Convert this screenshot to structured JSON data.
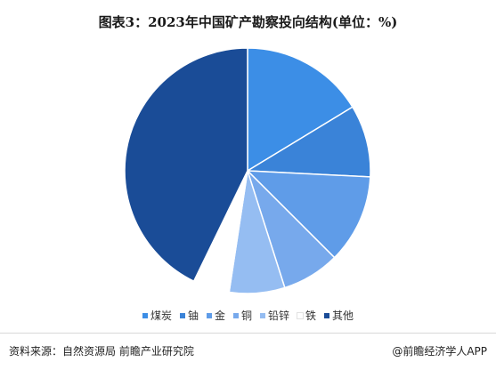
{
  "header": {
    "title": "图表3：2023年中国矿产勘察投向结构(单位：%)"
  },
  "chart_data": {
    "type": "pie",
    "title": "图表3：2023年中国矿产勘察投向结构(单位：%)",
    "categories": [
      "煤炭",
      "铀",
      "金",
      "铜",
      "铅锌",
      "铁",
      "其他"
    ],
    "values": [
      16.3,
      9.5,
      11.7,
      7.6,
      7.3,
      4.8,
      42.8
    ],
    "colors": [
      "#3c8ee6",
      "#3a83d8",
      "#5f9ce8",
      "#77a9ec",
      "#95bdf2",
      "#ffffff",
      "#1a4c97"
    ],
    "start_angle_deg": 0,
    "direction": "clockwise",
    "legend_position": "bottom"
  },
  "legend": {
    "items": [
      {
        "label": "煤炭",
        "color": "#3c8ee6"
      },
      {
        "label": "铀",
        "color": "#3a83d8"
      },
      {
        "label": "金",
        "color": "#5f9ce8"
      },
      {
        "label": "铜",
        "color": "#77a9ec"
      },
      {
        "label": "铅锌",
        "color": "#95bdf2"
      },
      {
        "label": "铁",
        "color": "#ffffff"
      },
      {
        "label": "其他",
        "color": "#1a4c97"
      }
    ]
  },
  "footer": {
    "source": "资料来源：自然资源局 前瞻产业研究院",
    "brand": "@前瞻经济学人APP"
  }
}
